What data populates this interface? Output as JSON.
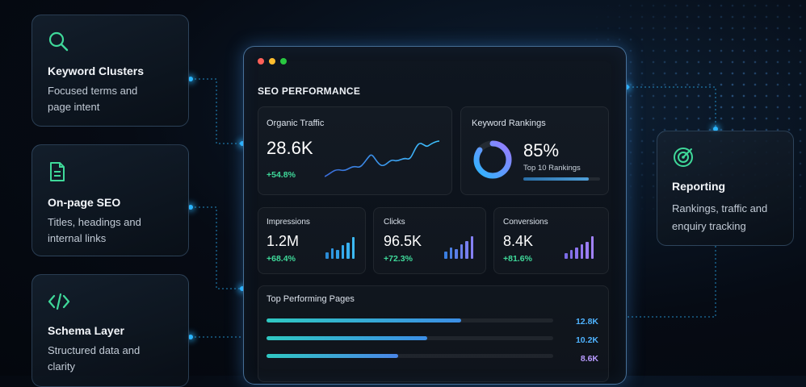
{
  "features": [
    {
      "title": "Keyword Clusters",
      "desc": "Focused terms and page intent",
      "icon": "search-icon"
    },
    {
      "title": "On-page SEO",
      "desc": "Titles, headings and internal links",
      "icon": "document-icon"
    },
    {
      "title": "Schema Layer",
      "desc": "Structured data and clarity",
      "icon": "code-icon"
    }
  ],
  "reporting": {
    "title": "Reporting",
    "desc": "Rankings, traffic and enquiry tracking",
    "icon": "target-icon"
  },
  "dashboard": {
    "title": "SEO PERFORMANCE",
    "organic": {
      "label": "Organic Traffic",
      "value": "28.6K",
      "delta": "+54.8%"
    },
    "rankings": {
      "label": "Keyword Rankings",
      "value": "85%",
      "sub": "Top 10 Rankings",
      "percent": 85
    },
    "metrics": [
      {
        "label": "Impressions",
        "value": "1.2M",
        "delta": "+68.4%"
      },
      {
        "label": "Clicks",
        "value": "96.5K",
        "delta": "+72.3%"
      },
      {
        "label": "Conversions",
        "value": "8.4K",
        "delta": "+81.6%"
      }
    ],
    "top_pages": {
      "label": "Top Performing Pages",
      "rows": [
        {
          "value": "12.8K",
          "fraction": 0.68
        },
        {
          "value": "10.2K",
          "fraction": 0.56
        },
        {
          "value": "8.6K",
          "fraction": 0.46
        }
      ]
    }
  },
  "colors": {
    "accent_green": "#3fd99a",
    "accent_blue": "#2bb6ff",
    "accent_purple": "#9a7bff",
    "value_blue": "#4fb3ff",
    "value_purple": "#b99bff"
  }
}
